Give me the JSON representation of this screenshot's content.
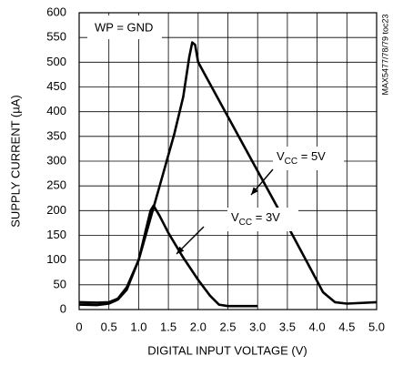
{
  "chart_data": {
    "type": "line",
    "xlabel": "DIGITAL INPUT VOLTAGE (V)",
    "ylabel": "SUPPLY CURRENT (µA)",
    "side_note": "MAX5477/78/79 toc23",
    "xlim": [
      0,
      5
    ],
    "ylim": [
      0,
      600
    ],
    "xticks": [
      0,
      0.5,
      {
        "value": 1,
        "label": "1.0"
      },
      1.5,
      {
        "value": 2,
        "label": "2.0"
      },
      2.5,
      {
        "value": 3,
        "label": "3.0"
      },
      3.5,
      {
        "value": 4,
        "label": "4.0"
      },
      4.5,
      {
        "value": 5,
        "label": "5.0"
      }
    ],
    "yticks": [
      0,
      50,
      100,
      150,
      200,
      250,
      300,
      350,
      400,
      450,
      500,
      550,
      600
    ],
    "grid": true,
    "series": [
      {
        "label_parts": [
          "V",
          "CC",
          " = 5V"
        ],
        "color": "#000000",
        "x": [
          0,
          0.3,
          0.5,
          0.65,
          0.8,
          1.0,
          1.2,
          1.4,
          1.6,
          1.75,
          1.85,
          1.9,
          1.95,
          2.0,
          2.5,
          3.0,
          3.5,
          3.9,
          4.1,
          4.3,
          4.5,
          5.0
        ],
        "values": [
          15,
          14,
          15,
          22,
          45,
          100,
          185,
          270,
          355,
          430,
          510,
          540,
          535,
          500,
          390,
          280,
          170,
          80,
          35,
          15,
          12,
          15
        ]
      },
      {
        "label_parts": [
          "V",
          "CC",
          " = 3V"
        ],
        "color": "#000000",
        "x": [
          0,
          0.3,
          0.5,
          0.65,
          0.8,
          1.0,
          1.1,
          1.2,
          1.25,
          1.35,
          1.5,
          1.75,
          2.0,
          2.2,
          2.35,
          2.5,
          3.0
        ],
        "values": [
          10,
          9,
          12,
          20,
          40,
          100,
          150,
          200,
          210,
          190,
          155,
          105,
          60,
          28,
          10,
          7,
          7
        ]
      }
    ],
    "annotation": "WP = GND"
  }
}
